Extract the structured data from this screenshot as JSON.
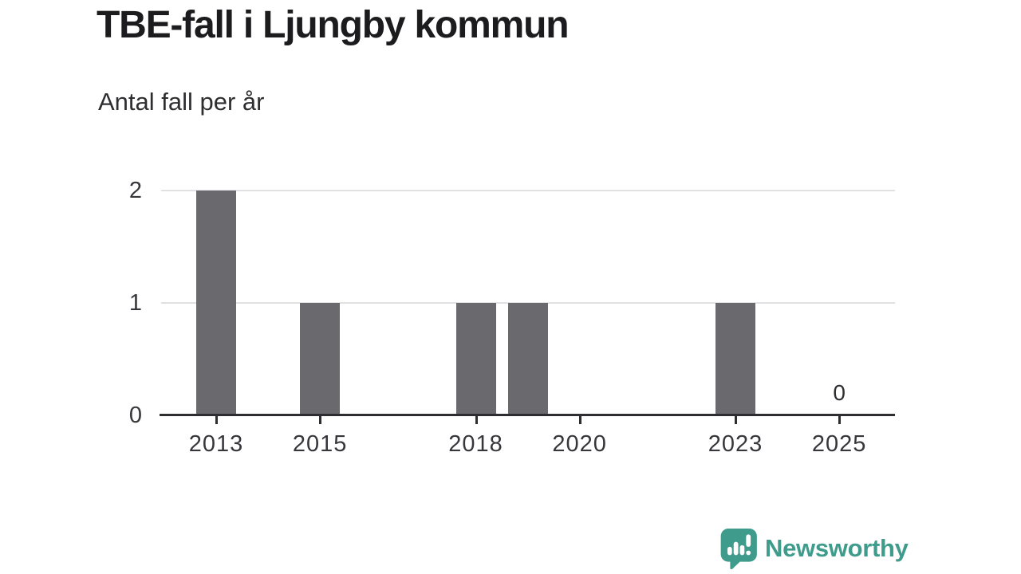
{
  "header": {
    "title": "TBE-fall i Ljungby kommun",
    "subtitle": "Antal fall per år"
  },
  "chart_data": {
    "type": "bar",
    "title": "TBE-fall i Ljungby kommun",
    "subtitle": "Antal fall per år",
    "categories": [
      2013,
      2014,
      2015,
      2016,
      2017,
      2018,
      2019,
      2020,
      2021,
      2022,
      2023,
      2024,
      2025
    ],
    "values": [
      2,
      0,
      1,
      0,
      0,
      1,
      1,
      0,
      0,
      0,
      1,
      0,
      0
    ],
    "xlabel": "",
    "ylabel": "Antal fall per år",
    "ylim": [
      0,
      2
    ],
    "yticks": [
      0,
      1,
      2
    ],
    "xtick_years": [
      2013,
      2015,
      2018,
      2020,
      2023,
      2025
    ],
    "xtick_labels": [
      "2013",
      "2015",
      "2018",
      "2020",
      "2023",
      "2025"
    ],
    "grid": true,
    "legend_position": "none",
    "bar_color": "#6a696d",
    "gridline_color": "#e1e0e2",
    "axis_color": "#2e2d31",
    "value_annotation": {
      "year": 2025,
      "text": "0"
    }
  },
  "branding": {
    "name": "Newsworthy",
    "color": "#3f9c8c",
    "icon": "newsworthy-bar-chart-bubble-icon"
  }
}
